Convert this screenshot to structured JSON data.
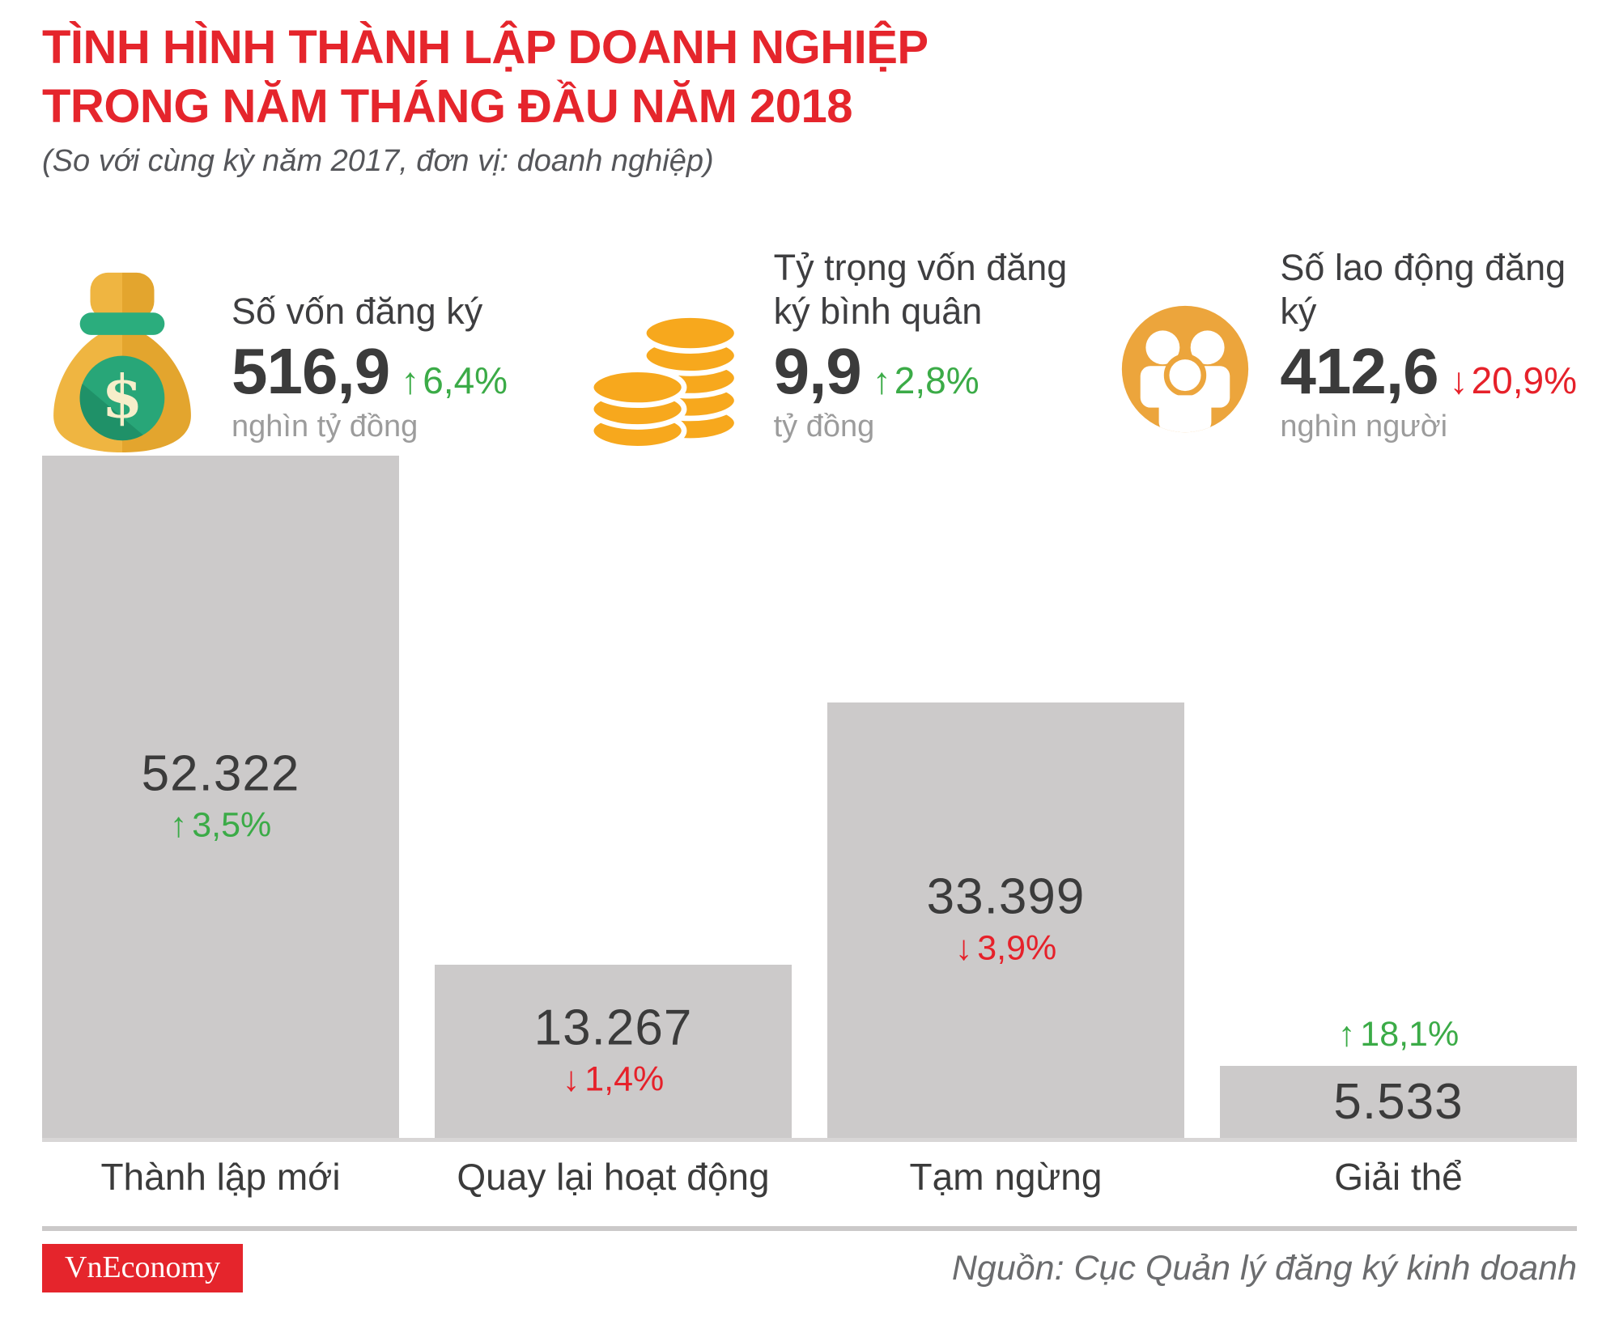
{
  "page": {
    "title_line1": "TÌNH HÌNH THÀNH LẬP DOANH NGHIỆP",
    "title_line2": "TRONG NĂM THÁNG ĐẦU NĂM 2018",
    "subtitle": "(So với cùng kỳ năm 2017, đơn vị: doanh nghiệp)"
  },
  "colors": {
    "accent_red": "#E5252C",
    "green_up": "#3BAB47",
    "down_red": "#E6212A",
    "bar_gray": "#CCCACA",
    "baseline_gray": "#D8D6D6",
    "divider_gray": "#CBC9C9",
    "text_dark": "#3B3B3B",
    "label_dark": "#3E3E40",
    "unit_gray": "#9C9C9C",
    "subtitle_gray": "#55565A",
    "source_gray": "#6B6C6E",
    "gold": "#F7A81D",
    "bag_gold": "#EFB541",
    "bag_gold_dark": "#E3A52E",
    "band_green": "#2BAD7D",
    "circle_green": "#28A678",
    "circle_green_dark": "#1F9168",
    "cream": "#F6EECA",
    "people_orange": "#ECA53C"
  },
  "icons": {
    "arrow_up_glyph": "↑",
    "arrow_down_glyph": "↓",
    "dollar_glyph": "$",
    "stat_icons": [
      "money-bag-icon",
      "coin-stack-icon",
      "people-group-icon"
    ]
  },
  "stats": [
    {
      "label": "Số vốn đăng ký",
      "value": "516,9",
      "direction": "up",
      "change": "6,4%",
      "unit": "nghìn tỷ đồng"
    },
    {
      "label": "Tỷ trọng vốn đăng ký bình quân",
      "value": "9,9",
      "direction": "up",
      "change": "2,8%",
      "unit": "tỷ đồng"
    },
    {
      "label": "Số lao động đăng ký",
      "value": "412,6",
      "direction": "down",
      "change": "20,9%",
      "unit": "nghìn người"
    }
  ],
  "chart_data": {
    "type": "bar",
    "title": "Tình hình thành lập doanh nghiệp trong năm tháng đầu năm 2018",
    "unit": "doanh nghiệp",
    "comparison": "so với cùng kỳ năm 2017",
    "categories": [
      "Thành lập mới",
      "Quay lại hoạt động",
      "Tạm ngừng",
      "Giải thể"
    ],
    "values": [
      52322,
      13267,
      33399,
      5533
    ],
    "value_labels": [
      "52.322",
      "13.267",
      "33.399",
      "5.533"
    ],
    "changes": [
      {
        "dir": "up",
        "label": "3,5%",
        "position": "inside"
      },
      {
        "dir": "down",
        "label": "1,4%",
        "position": "inside"
      },
      {
        "dir": "down",
        "label": "3,9%",
        "position": "inside"
      },
      {
        "dir": "up",
        "label": "18,1%",
        "position": "above"
      }
    ],
    "ylim": [
      0,
      52322
    ],
    "grid": false,
    "legend": false
  },
  "footer": {
    "logo": "VnEconomy",
    "source": "Nguồn: Cục Quản lý đăng ký kinh doanh"
  }
}
